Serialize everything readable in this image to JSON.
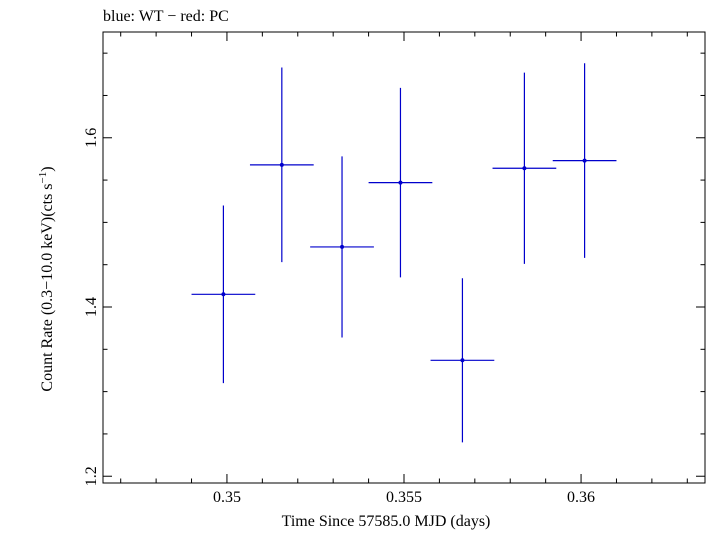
{
  "chart_data": {
    "type": "scatter",
    "title": "blue: WT − red: PC",
    "xlabel": "Time Since 57585.0 MJD (days)",
    "ylabel_main": "Count Rate (0.3−10.0 keV)(cts s",
    "ylabel_exp": "−1",
    "ylabel_close": ")",
    "xlim": [
      0.3465,
      0.3635
    ],
    "ylim": [
      1.192,
      1.725
    ],
    "x_ticks": [
      0.35,
      0.355,
      0.36
    ],
    "x_tick_labels": [
      "0.35",
      "0.355",
      "0.36"
    ],
    "y_ticks": [
      1.2,
      1.4,
      1.6
    ],
    "y_tick_labels": [
      "1.2",
      "1.4",
      "1.6"
    ],
    "x_minor_step": 0.001,
    "y_minor_step": 0.05,
    "series": [
      {
        "color": "#0000cc",
        "points": [
          {
            "x": 0.3499,
            "xerr": 0.0009,
            "y": 1.415,
            "yerr": 0.105
          },
          {
            "x": 0.35155,
            "xerr": 0.0009,
            "y": 1.568,
            "yerr": 0.115
          },
          {
            "x": 0.35325,
            "xerr": 0.0009,
            "y": 1.471,
            "yerr": 0.107
          },
          {
            "x": 0.3549,
            "xerr": 0.0009,
            "y": 1.547,
            "yerr": 0.112
          },
          {
            "x": 0.35665,
            "xerr": 0.0009,
            "y": 1.337,
            "yerr": 0.097
          },
          {
            "x": 0.3584,
            "xerr": 0.0009,
            "y": 1.564,
            "yerr": 0.113
          },
          {
            "x": 0.3601,
            "xerr": 0.0009,
            "y": 1.573,
            "yerr": 0.115
          }
        ]
      }
    ]
  }
}
